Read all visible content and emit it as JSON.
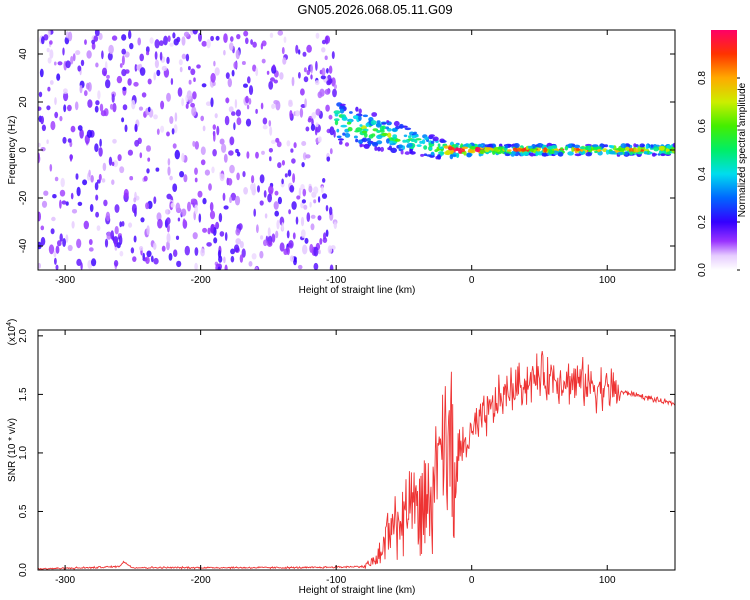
{
  "title": "GN05.2026.068.05.11.G09",
  "colors": {
    "snr_line": "#ee3333",
    "frame": "#000000"
  },
  "chart_data": [
    {
      "type": "heatmap",
      "xlabel": "Height of straight line (km)",
      "ylabel": "Frequency (Hz)",
      "xlim": [
        -320,
        150
      ],
      "ylim": [
        -50,
        50
      ],
      "x_ticks": [
        -300,
        -200,
        -100,
        0,
        100
      ],
      "y_ticks": [
        -40,
        -20,
        0,
        20,
        40
      ],
      "colorbar": {
        "label": "Normalized spectral amplitude",
        "range": [
          0,
          1
        ],
        "ticks": [
          "0.0",
          "0.2",
          "0.4",
          "0.6",
          "0.8"
        ],
        "colormap": "rainbow (violet to red)"
      },
      "regions": [
        {
          "x_range": [
            -320,
            -100
          ],
          "freq_range": [
            -50,
            50
          ],
          "amplitude": 0.1,
          "pattern": "scattered noise"
        },
        {
          "x_range": [
            -100,
            -20
          ],
          "freq_center": [
            12,
            0
          ],
          "freq_halfwidth": [
            9,
            4
          ],
          "amplitude": 0.5,
          "pattern": "narrowing band"
        },
        {
          "x_range": [
            -20,
            10
          ],
          "freq_center": [
            0,
            0
          ],
          "freq_halfwidth": [
            3,
            2
          ],
          "amplitude": 0.9,
          "pattern": "narrow peak"
        },
        {
          "x_range": [
            10,
            150
          ],
          "freq_center": [
            0,
            0
          ],
          "freq_halfwidth": [
            2,
            2
          ],
          "amplitude": 0.7,
          "pattern": "narrow band"
        }
      ]
    },
    {
      "type": "line",
      "xlabel": "Height of straight line (km)",
      "ylabel": "SNR (10 * v/v)",
      "y_multiplier_label": "(x10",
      "y_multiplier_exp": "4",
      "xlim": [
        -320,
        150
      ],
      "ylim": [
        0,
        2.05
      ],
      "x_ticks": [
        -300,
        -200,
        -100,
        0,
        100
      ],
      "y_ticks": [
        "0.0",
        "0.5",
        "1.0",
        "1.5",
        "2.0"
      ],
      "series": [
        {
          "x": [
            -320,
            -280,
            -260,
            -257,
            -250,
            -200,
            -120,
            -80,
            -75,
            -70,
            -65,
            -60,
            -50,
            -40,
            -30,
            -25,
            -20,
            -10,
            0,
            10,
            20,
            30,
            40,
            50,
            60,
            70,
            80,
            90,
            100,
            110,
            120,
            130,
            140,
            150
          ],
          "values": [
            0.01,
            0.02,
            0.03,
            0.07,
            0.02,
            0.02,
            0.02,
            0.03,
            0.05,
            0.1,
            0.2,
            0.35,
            0.45,
            0.5,
            0.55,
            0.75,
            0.9,
            1.0,
            1.15,
            1.3,
            1.45,
            1.55,
            1.6,
            1.65,
            1.65,
            1.62,
            1.6,
            1.58,
            1.55,
            1.52,
            1.5,
            1.47,
            1.44,
            1.42
          ]
        }
      ]
    }
  ]
}
